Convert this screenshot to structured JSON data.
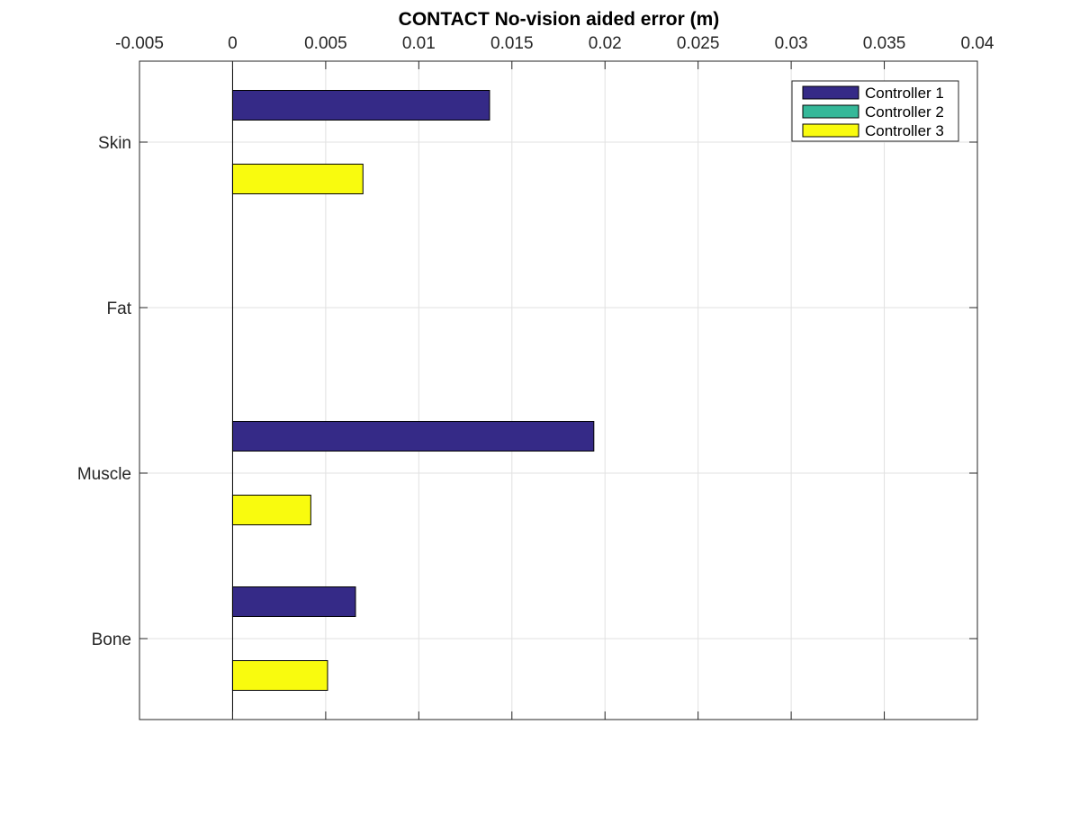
{
  "chart_data": {
    "type": "bar",
    "orientation": "horizontal",
    "title": "CONTACT No-vision aided error (m)",
    "xlabel": "",
    "ylabel": "",
    "x_axis_location": "top",
    "xlim": [
      -0.005,
      0.04
    ],
    "x_ticks": [
      -0.005,
      0,
      0.005,
      0.01,
      0.015,
      0.02,
      0.025,
      0.03,
      0.035,
      0.04
    ],
    "x_tick_labels": [
      "-0.005",
      "0",
      "0.005",
      "0.01",
      "0.015",
      "0.02",
      "0.025",
      "0.03",
      "0.035",
      "0.04"
    ],
    "categories": [
      "Skin",
      "Fat",
      "Muscle",
      "Bone"
    ],
    "series": [
      {
        "name": "Controller 1",
        "color": "#352a87",
        "values": [
          0.0138,
          0,
          0.0194,
          0.0066
        ]
      },
      {
        "name": "Controller 2",
        "color": "#35b899",
        "values": [
          0,
          0,
          0,
          0
        ]
      },
      {
        "name": "Controller 3",
        "color": "#f9fb0e",
        "values": [
          0.007,
          0,
          0.0042,
          0.0051
        ]
      }
    ],
    "grid": true,
    "legend": {
      "position": "top-right"
    }
  }
}
